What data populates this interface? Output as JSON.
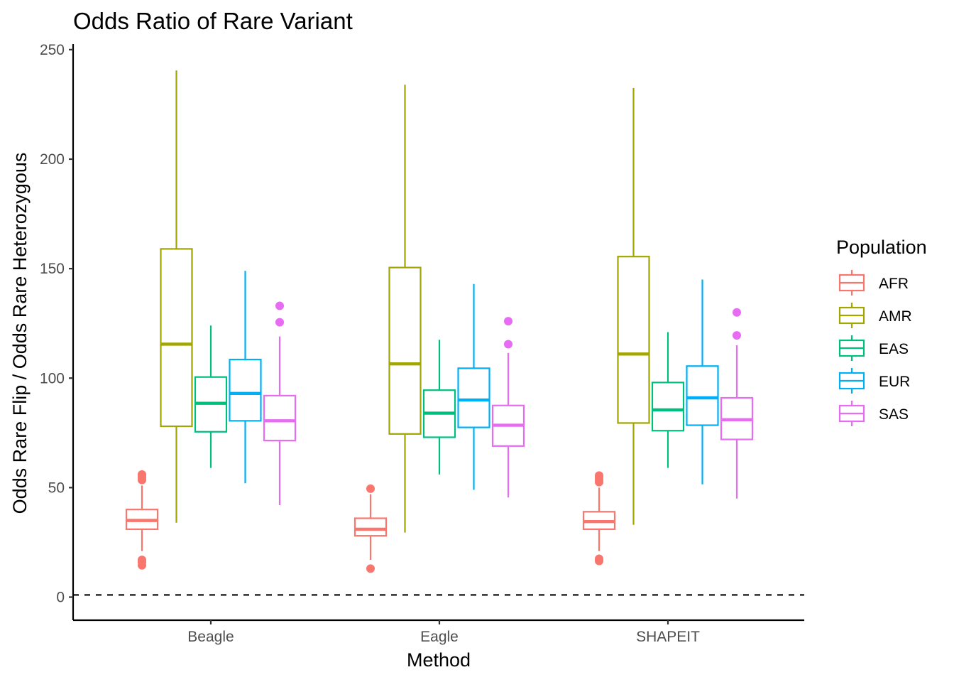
{
  "chart_data": {
    "type": "boxplot",
    "title": "Odds Ratio of Rare Variant",
    "xlabel": "Method",
    "ylabel": "Odds Rare Flip / Odds Rare Heterozygous",
    "ylim": [
      -10,
      252
    ],
    "yticks": [
      0,
      50,
      100,
      150,
      200,
      250
    ],
    "reference_line": {
      "y": 1,
      "style": "dashed",
      "color": "#000000"
    },
    "categories": [
      "Beagle",
      "Eagle",
      "SHAPEIT"
    ],
    "legend": {
      "title": "Population",
      "placement": "right"
    },
    "series": [
      {
        "name": "AFR",
        "color": "#F8766D",
        "boxes": [
          {
            "low": 21,
            "q1": 31,
            "median": 35,
            "q3": 40,
            "high": 51,
            "outliers": [
              53.5,
              54.5,
              55.5,
              56,
              14.5,
              16,
              17
            ]
          },
          {
            "low": 17,
            "q1": 28,
            "median": 31,
            "q3": 36,
            "high": 47,
            "outliers": [
              49.5,
              13
            ]
          },
          {
            "low": 21,
            "q1": 31,
            "median": 34.5,
            "q3": 39,
            "high": 50,
            "outliers": [
              52.5,
              53.5,
              54.5,
              55.5,
              16.5,
              17.5
            ]
          }
        ]
      },
      {
        "name": "AMR",
        "color": "#A3A500",
        "boxes": [
          {
            "low": 34,
            "q1": 78,
            "median": 115.5,
            "q3": 159,
            "high": 240.5,
            "outliers": []
          },
          {
            "low": 29.5,
            "q1": 74.5,
            "median": 106.5,
            "q3": 150.5,
            "high": 234,
            "outliers": []
          },
          {
            "low": 33,
            "q1": 79.5,
            "median": 111,
            "q3": 155.5,
            "high": 232.5,
            "outliers": []
          }
        ]
      },
      {
        "name": "EAS",
        "color": "#00BF7D",
        "boxes": [
          {
            "low": 59,
            "q1": 75.5,
            "median": 88.5,
            "q3": 100.5,
            "high": 124,
            "outliers": []
          },
          {
            "low": 56,
            "q1": 73,
            "median": 84,
            "q3": 94.5,
            "high": 117.5,
            "outliers": []
          },
          {
            "low": 59,
            "q1": 76,
            "median": 85.5,
            "q3": 98,
            "high": 121,
            "outliers": []
          }
        ]
      },
      {
        "name": "EUR",
        "color": "#00B0F6",
        "boxes": [
          {
            "low": 52,
            "q1": 80.5,
            "median": 93,
            "q3": 108.5,
            "high": 149,
            "outliers": []
          },
          {
            "low": 49,
            "q1": 77.5,
            "median": 90,
            "q3": 104.5,
            "high": 143,
            "outliers": []
          },
          {
            "low": 51.5,
            "q1": 78.5,
            "median": 91,
            "q3": 105.5,
            "high": 145,
            "outliers": []
          }
        ]
      },
      {
        "name": "SAS",
        "color": "#E76BF3",
        "boxes": [
          {
            "low": 42,
            "q1": 71.5,
            "median": 80.5,
            "q3": 92,
            "high": 119,
            "outliers": [
              125.5,
              133
            ]
          },
          {
            "low": 45.5,
            "q1": 69,
            "median": 78.5,
            "q3": 87.5,
            "high": 111.5,
            "outliers": [
              115.5,
              126
            ]
          },
          {
            "low": 45,
            "q1": 72,
            "median": 81,
            "q3": 91,
            "high": 115,
            "outliers": [
              119.5,
              130
            ]
          }
        ]
      }
    ]
  }
}
